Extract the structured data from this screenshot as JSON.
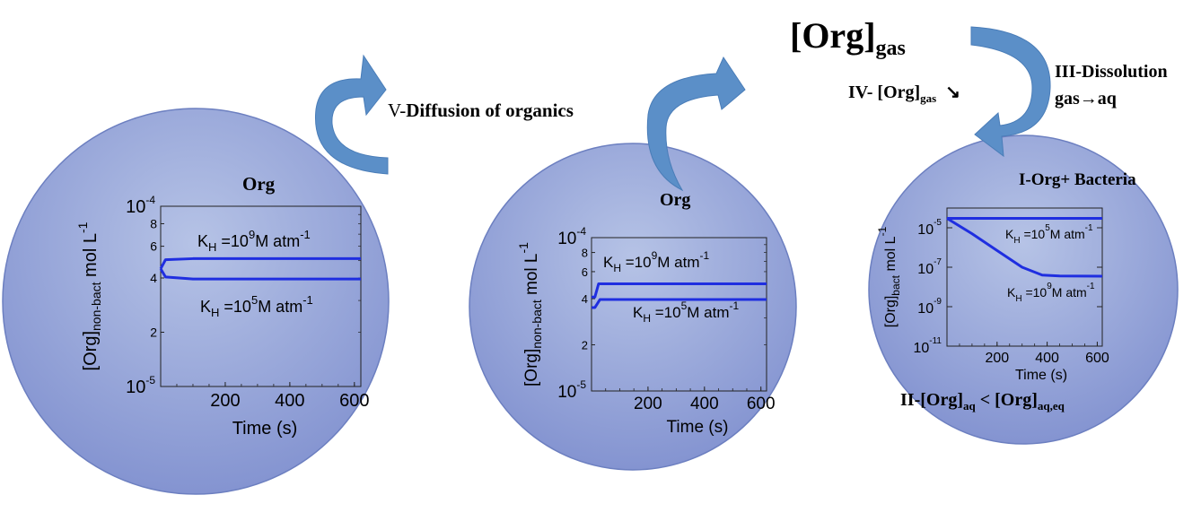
{
  "labels": {
    "gas_main": "[Org]",
    "gas_main_sub": "gas",
    "diffusion_prefix": "V-",
    "diffusion_text": "Diffusion of organics",
    "step4_prefix": "IV- [Org]",
    "step4_sub": "gas",
    "step4_arrow": "↘",
    "step3_line1": "III-Dissolution",
    "step3_line2": "gas→aq",
    "step2_prefix": "II-[Org]",
    "step2_sub1": "aq",
    "step2_mid": " < [Org]",
    "step2_sub2": "aq,eq"
  },
  "colors": {
    "circle_fill_top": "#b3c0e4",
    "circle_fill_bottom": "#8596d0",
    "circle_stroke": "#6c7fc0",
    "arrow_fill": "#5b8fc8",
    "curve_color": "#1f2ee0"
  },
  "chart_data": [
    {
      "type": "line",
      "title": "Org",
      "xlabel": "Time (s)",
      "ylabel_main": "[Org]",
      "ylabel_sub": "non-bact",
      "ylabel_unit": " mol L",
      "ylabel_exp": "-1",
      "x_ticks": [
        "200",
        "400",
        "600"
      ],
      "xlim": [
        0,
        620
      ],
      "ylim": [
        1e-05,
        0.0001
      ],
      "y_scale": "log",
      "y_major_ticks": [
        {
          "base": "10",
          "exp": "-4"
        },
        {
          "base": "10",
          "exp": "-5"
        }
      ],
      "y_minor_ticks": [
        "8",
        "6",
        "4",
        "2"
      ],
      "series": [
        {
          "values": [
            [
              0,
              4.5e-05
            ],
            [
              15,
              5.05e-05
            ],
            [
              100,
              5.12e-05
            ],
            [
              620,
              5.12e-05
            ]
          ]
        },
        {
          "values": [
            [
              0,
              4.5e-05
            ],
            [
              15,
              4.05e-05
            ],
            [
              100,
              3.95e-05
            ],
            [
              620,
              3.95e-05
            ]
          ]
        }
      ],
      "annotations": [
        {
          "prefix": "K",
          "sub": "H",
          "mid": " =10",
          "sup": "9",
          "suffix": "M atm",
          "sup2": "-1"
        },
        {
          "prefix": "K",
          "sub": "H",
          "mid": " =10",
          "sup": "5",
          "suffix": "M atm",
          "sup2": "-1"
        }
      ]
    },
    {
      "type": "line",
      "title": "Org",
      "xlabel": "Time (s)",
      "ylabel_main": "[Org]",
      "ylabel_sub": "non-bact",
      "ylabel_unit": " mol L",
      "ylabel_exp": "-1",
      "x_ticks": [
        "200",
        "400",
        "600"
      ],
      "xlim": [
        0,
        620
      ],
      "ylim": [
        1e-05,
        0.0001
      ],
      "y_scale": "log",
      "y_major_ticks": [
        {
          "base": "10",
          "exp": "-4"
        },
        {
          "base": "10",
          "exp": "-5"
        }
      ],
      "y_minor_ticks": [
        "8",
        "6",
        "4",
        "2"
      ],
      "series": [
        {
          "values": [
            [
              0,
              4.1e-05
            ],
            [
              12,
              4.1e-05
            ],
            [
              25,
              5e-05
            ],
            [
              620,
              5e-05
            ]
          ]
        },
        {
          "values": [
            [
              0,
              3.5e-05
            ],
            [
              12,
              3.5e-05
            ],
            [
              30,
              3.95e-05
            ],
            [
              620,
              3.95e-05
            ]
          ]
        }
      ],
      "annotations": [
        {
          "prefix": "K",
          "sub": "H",
          "mid": " =10",
          "sup": "9",
          "suffix": "M atm",
          "sup2": "-1"
        },
        {
          "prefix": "K",
          "sub": "H",
          "mid": " =10",
          "sup": "5",
          "suffix": "M atm",
          "sup2": "-1"
        }
      ]
    },
    {
      "type": "line",
      "title": "I-Org+ Bacteria",
      "xlabel": "Time (s)",
      "ylabel_main": "[Org]",
      "ylabel_sub": "bact",
      "ylabel_unit": " mol L",
      "ylabel_exp": "-1",
      "x_ticks": [
        "200",
        "400",
        "600"
      ],
      "xlim": [
        0,
        620
      ],
      "ylim": [
        1e-11,
        0.0001
      ],
      "y_scale": "log",
      "y_major_ticks": [
        {
          "base": "10",
          "exp": "-5"
        },
        {
          "base": "10",
          "exp": "-7"
        },
        {
          "base": "10",
          "exp": "-9"
        },
        {
          "base": "10",
          "exp": "-11"
        }
      ],
      "y_minor_ticks": [],
      "series": [
        {
          "values": [
            [
              0,
              3e-05
            ],
            [
              620,
              3e-05
            ]
          ]
        },
        {
          "values": [
            [
              0,
              3e-05
            ],
            [
              100,
              5e-06
            ],
            [
              200,
              7e-07
            ],
            [
              300,
              1e-07
            ],
            [
              380,
              4e-08
            ],
            [
              450,
              3.6e-08
            ],
            [
              620,
              3.5e-08
            ]
          ]
        }
      ],
      "annotations": [
        {
          "prefix": "K",
          "sub": "H",
          "mid": " =10",
          "sup": "5",
          "suffix": "M atm",
          "sup2": "-1"
        },
        {
          "prefix": "K",
          "sub": "H",
          "mid": " =10",
          "sup": "9",
          "suffix": "M atm",
          "sup2": "-1"
        }
      ]
    }
  ]
}
